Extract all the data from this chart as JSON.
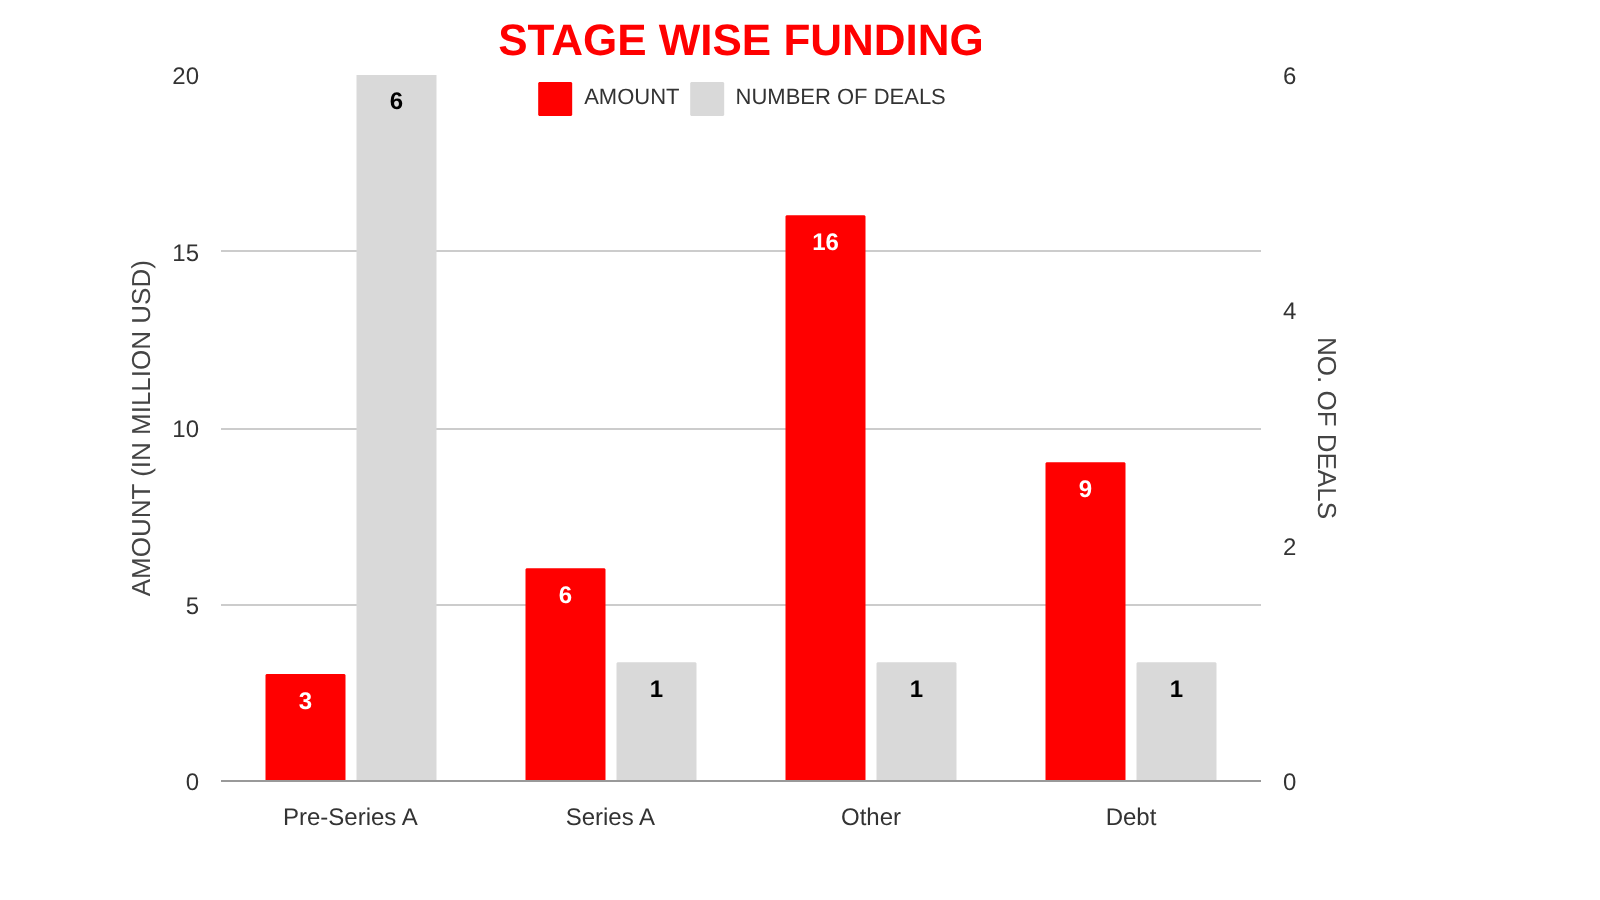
{
  "chart_data": {
    "type": "bar",
    "title": "STAGE WISE FUNDING",
    "ylabel": "AMOUNT (IN MILLION USD)",
    "y2label": "NO. OF DEALS",
    "categories": [
      "Pre-Series A",
      "Series A",
      "Other",
      "Debt"
    ],
    "series": [
      {
        "name": "AMOUNT",
        "color": "#ff0000",
        "values": [
          3,
          6,
          16,
          9
        ]
      },
      {
        "name": "NUMBER OF DEALS",
        "color": "#d9d9d9",
        "values": [
          6,
          1,
          1,
          1
        ],
        "axis": "y2"
      }
    ],
    "ylim": [
      0,
      20
    ],
    "yticks": [
      0,
      5,
      10,
      15,
      20
    ],
    "y2lim": [
      0,
      6
    ],
    "y2ticks": [
      0,
      2,
      4,
      6
    ],
    "grid": "y",
    "legend": "top",
    "data_labels": true
  }
}
